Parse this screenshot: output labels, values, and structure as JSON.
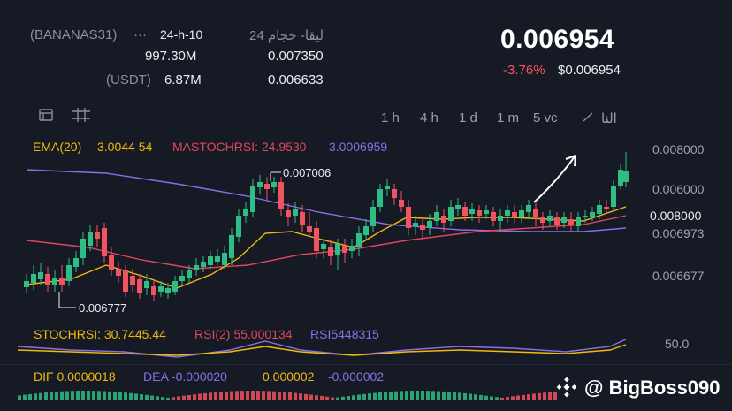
{
  "header": {
    "pair_label": "(BANANAS31)",
    "more_dots": "···",
    "period_label": "24-h-10",
    "arabic_label": "ليقا- حجام 24",
    "volume_base": "997.30M",
    "high_value": "0.007350",
    "quote_label": "(USDT)",
    "volume_quote": "6.87M",
    "low_value": "0.006633",
    "last_price": "0.006954",
    "change_percent": "-3.76%",
    "last_price_usd": "$0.006954"
  },
  "toolbar": {
    "timeframes": [
      "1 h",
      "4 h",
      "1 d",
      "1 m",
      "5 vc"
    ],
    "more_label": "النا"
  },
  "chart": {
    "ema_label": "EMA(20)",
    "ema_value": "3.0044 54",
    "mastochrsi_label": "MASTOCHRSI: 24.9530",
    "third_value": "3.0006959",
    "y_axis_labels": [
      "0.008000",
      "0.006000",
      "0.008000",
      "0.006973",
      "0.006677"
    ],
    "high_marker": "0.007006",
    "low_marker": "0.006777",
    "colors": {
      "up": "#2ebd85",
      "down": "#f0545f",
      "ema_fast": "#f0b90b",
      "ema_mid": "#e0475b",
      "ema_slow": "#8a6fe8"
    }
  },
  "stoch": {
    "stoch_label": "STOCHRSI: 30.7445.44",
    "rsi2_label": "RSI(2) 55.000134",
    "rsi_label": "RSI5448315",
    "axis_label": "50.0"
  },
  "macd": {
    "dif_label": "DIF 0.0000018",
    "dea_label": "DEA -0.000020",
    "val3": "0.000002",
    "val4": "-0.000002"
  },
  "watermark": {
    "handle": "@ BigBoss090"
  }
}
